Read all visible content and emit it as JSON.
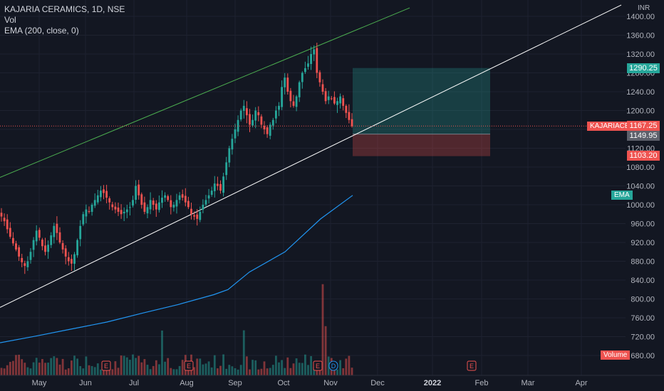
{
  "symbol": {
    "title": "KAJARIA CERAMICS, 1D, NSE",
    "volume_label": "Vol",
    "ema_label": "EMA (200, close, 0)",
    "ticker": "KAJARIACER"
  },
  "currency": "INR",
  "y_ticks": [
    "1400.00",
    "1360.00",
    "1320.00",
    "1280.00",
    "1240.00",
    "1200.00",
    "1160.00",
    "1120.00",
    "1080.00",
    "1040.00",
    "1000.00",
    "960.00",
    "920.00",
    "880.00",
    "840.00",
    "800.00",
    "760.00",
    "720.00",
    "680.00"
  ],
  "x_ticks": [
    "May",
    "Jun",
    "Jul",
    "Aug",
    "Sep",
    "Oct",
    "Nov",
    "Dec",
    "2022",
    "Feb",
    "Mar",
    "Apr"
  ],
  "price_tags": {
    "target": "1290.25",
    "last": "1167.25",
    "entry": "1149.95",
    "stop": "1103.20",
    "ema": "EMA",
    "volume": "Volume"
  },
  "event_markers": [
    "E",
    "E",
    "E",
    "D",
    "E"
  ],
  "colors": {
    "background": "#131722",
    "up": "#26a69a",
    "down": "#ef5350",
    "ema_line": "#2196f3",
    "channel_upper": "#4caf50",
    "channel_lower": "#ffffff"
  },
  "chart_data": {
    "type": "candlestick",
    "y_range": [
      660,
      1410
    ],
    "x_range_labels": [
      "May",
      "Apr"
    ],
    "ema_points": [
      [
        0,
        707
      ],
      [
        50,
        721
      ],
      [
        100,
        736
      ],
      [
        150,
        751
      ],
      [
        200,
        770
      ],
      [
        250,
        788
      ],
      [
        300,
        809
      ],
      [
        320,
        820
      ],
      [
        350,
        857
      ],
      [
        400,
        900
      ],
      [
        450,
        970
      ],
      [
        495,
        1020
      ]
    ],
    "channel_upper": [
      [
        0,
        1058
      ],
      [
        575,
        1418
      ]
    ],
    "channel_lower": [
      [
        0,
        782
      ],
      [
        872,
        1424
      ]
    ],
    "position": {
      "target": 1290.25,
      "entry": 1149.95,
      "stop": 1103.2
    },
    "last_price": 1167.25,
    "candle_closes": [
      975,
      965,
      948,
      932,
      918,
      905,
      890,
      878,
      870,
      880,
      900,
      925,
      945,
      930,
      912,
      900,
      915,
      935,
      955,
      940,
      920,
      905,
      890,
      880,
      875,
      895,
      925,
      955,
      980,
      990,
      985,
      1000,
      1010,
      1020,
      1030,
      1025,
      1015,
      1005,
      995,
      990,
      985,
      980,
      985,
      990,
      995,
      1010,
      1040,
      1020,
      1000,
      985,
      995,
      1010,
      1000,
      990,
      1005,
      1015,
      1020,
      1010,
      995,
      1000,
      1010,
      1020,
      1015,
      1005,
      995,
      980,
      975,
      970,
      985,
      1000,
      1010,
      1020,
      1030,
      1045,
      1040,
      1030,
      1060,
      1090,
      1120,
      1140,
      1160,
      1180,
      1200,
      1210,
      1190,
      1170,
      1180,
      1200,
      1190,
      1170,
      1160,
      1150,
      1170,
      1180,
      1200,
      1210,
      1250,
      1270,
      1240,
      1220,
      1210,
      1230,
      1260,
      1280,
      1290,
      1300,
      1320,
      1330,
      1280,
      1260,
      1240,
      1220,
      1230,
      1225,
      1215,
      1220,
      1230,
      1210,
      1195,
      1180,
      1167
    ],
    "volume_scale_note": "relative"
  }
}
